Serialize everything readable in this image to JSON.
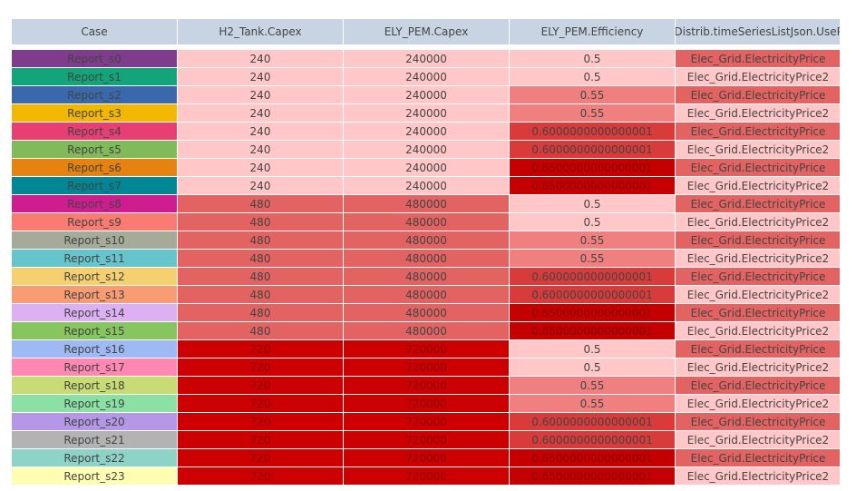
{
  "chart_data": {
    "type": "table",
    "columns": [
      "Case",
      "H2_Tank.Capex",
      "ELY_PEM.Capex",
      "ELY_PEM.Efficiency",
      "Elec_Distrib.timeSeriesListJson.UseProfile"
    ],
    "rows": [
      {
        "case": "Report_s0",
        "h2": "240",
        "ely": "240000",
        "eff": "0.5",
        "price": "Elec_Grid.ElectricityPrice",
        "color": "#7f3c8d"
      },
      {
        "case": "Report_s1",
        "h2": "240",
        "ely": "240000",
        "eff": "0.5",
        "price": "Elec_Grid.ElectricityPrice2",
        "color": "#11a579"
      },
      {
        "case": "Report_s2",
        "h2": "240",
        "ely": "240000",
        "eff": "0.55",
        "price": "Elec_Grid.ElectricityPrice",
        "color": "#3969ac"
      },
      {
        "case": "Report_s3",
        "h2": "240",
        "ely": "240000",
        "eff": "0.55",
        "price": "Elec_Grid.ElectricityPrice2",
        "color": "#f2b701"
      },
      {
        "case": "Report_s4",
        "h2": "240",
        "ely": "240000",
        "eff": "0.6000000000000001",
        "price": "Elec_Grid.ElectricityPrice",
        "color": "#e73f74"
      },
      {
        "case": "Report_s5",
        "h2": "240",
        "ely": "240000",
        "eff": "0.6000000000000001",
        "price": "Elec_Grid.ElectricityPrice2",
        "color": "#80ba5a"
      },
      {
        "case": "Report_s6",
        "h2": "240",
        "ely": "240000",
        "eff": "0.6500000000000001",
        "price": "Elec_Grid.ElectricityPrice",
        "color": "#e68310"
      },
      {
        "case": "Report_s7",
        "h2": "240",
        "ely": "240000",
        "eff": "0.6500000000000001",
        "price": "Elec_Grid.ElectricityPrice2",
        "color": "#008695"
      },
      {
        "case": "Report_s8",
        "h2": "480",
        "ely": "480000",
        "eff": "0.5",
        "price": "Elec_Grid.ElectricityPrice",
        "color": "#cf1c90"
      },
      {
        "case": "Report_s9",
        "h2": "480",
        "ely": "480000",
        "eff": "0.5",
        "price": "Elec_Grid.ElectricityPrice2",
        "color": "#f97b72"
      },
      {
        "case": "Report_s10",
        "h2": "480",
        "ely": "480000",
        "eff": "0.55",
        "price": "Elec_Grid.ElectricityPrice",
        "color": "#a5aa99"
      },
      {
        "case": "Report_s11",
        "h2": "480",
        "ely": "480000",
        "eff": "0.55",
        "price": "Elec_Grid.ElectricityPrice2",
        "color": "#66c5cc"
      },
      {
        "case": "Report_s12",
        "h2": "480",
        "ely": "480000",
        "eff": "0.6000000000000001",
        "price": "Elec_Grid.ElectricityPrice",
        "color": "#f6cf71"
      },
      {
        "case": "Report_s13",
        "h2": "480",
        "ely": "480000",
        "eff": "0.6000000000000001",
        "price": "Elec_Grid.ElectricityPrice2",
        "color": "#f89c74"
      },
      {
        "case": "Report_s14",
        "h2": "480",
        "ely": "480000",
        "eff": "0.6500000000000001",
        "price": "Elec_Grid.ElectricityPrice",
        "color": "#dcb0f2"
      },
      {
        "case": "Report_s15",
        "h2": "480",
        "ely": "480000",
        "eff": "0.6500000000000001",
        "price": "Elec_Grid.ElectricityPrice2",
        "color": "#87c55f"
      },
      {
        "case": "Report_s16",
        "h2": "720",
        "ely": "720000",
        "eff": "0.5",
        "price": "Elec_Grid.ElectricityPrice",
        "color": "#9eb9f3"
      },
      {
        "case": "Report_s17",
        "h2": "720",
        "ely": "720000",
        "eff": "0.5",
        "price": "Elec_Grid.ElectricityPrice2",
        "color": "#fe88b1"
      },
      {
        "case": "Report_s18",
        "h2": "720",
        "ely": "720000",
        "eff": "0.55",
        "price": "Elec_Grid.ElectricityPrice",
        "color": "#c9db74"
      },
      {
        "case": "Report_s19",
        "h2": "720",
        "ely": "720000",
        "eff": "0.55",
        "price": "Elec_Grid.ElectricityPrice2",
        "color": "#8be0a4"
      },
      {
        "case": "Report_s20",
        "h2": "720",
        "ely": "720000",
        "eff": "0.6000000000000001",
        "price": "Elec_Grid.ElectricityPrice",
        "color": "#b497e7"
      },
      {
        "case": "Report_s21",
        "h2": "720",
        "ely": "720000",
        "eff": "0.6000000000000001",
        "price": "Elec_Grid.ElectricityPrice2",
        "color": "#b3b3b3"
      },
      {
        "case": "Report_s22",
        "h2": "720",
        "ely": "720000",
        "eff": "0.6500000000000001",
        "price": "Elec_Grid.ElectricityPrice",
        "color": "#8dd3c7"
      },
      {
        "case": "Report_s23",
        "h2": "720",
        "ely": "720000",
        "eff": "0.6500000000000001",
        "price": "Elec_Grid.ElectricityPrice2",
        "color": "#ffffb3"
      }
    ],
    "level_colors": {
      "h2": {
        "240": "#ffc7c7",
        "480": "#e36262",
        "720": "#cc0000"
      },
      "ely": {
        "240000": "#ffc7c7",
        "480000": "#e36262",
        "720000": "#cc0000"
      },
      "eff": {
        "0.5": "#ffc7c7",
        "0.55": "#f08080",
        "0.6000000000000001": "#d93a3a",
        "0.6500000000000001": "#c40000"
      },
      "price": {
        "Elec_Grid.ElectricityPrice": "#e36262",
        "Elec_Grid.ElectricityPrice2": "#ffc7c7"
      }
    }
  }
}
